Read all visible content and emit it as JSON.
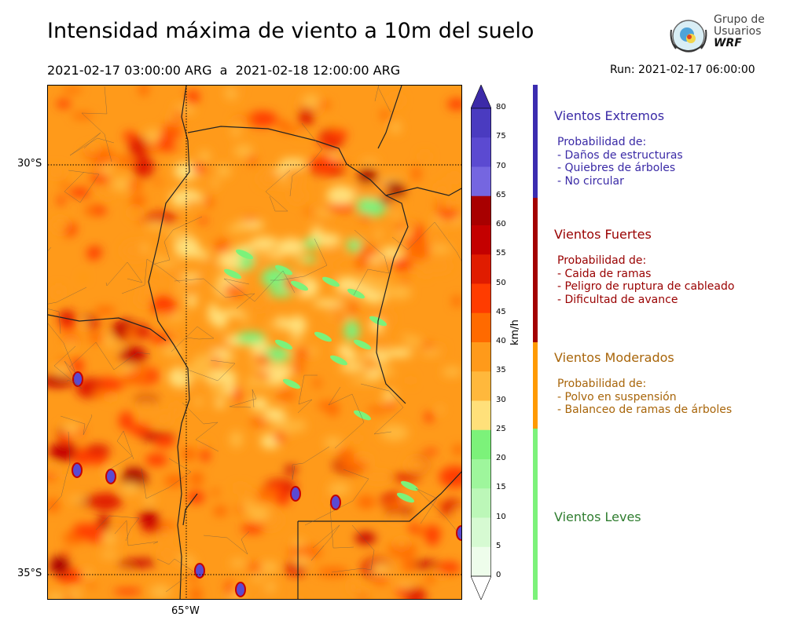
{
  "header": {
    "title": "Intensidad máxima de viento a 10m del suelo",
    "period": "2021-02-17 03:00:00 ARG  a  2021-02-18 12:00:00 ARG",
    "run": "Run: 2021-02-17 06:00:00"
  },
  "logo": {
    "line1": "Grupo de",
    "line2": "Usuarios",
    "line3": "WRF"
  },
  "map": {
    "lat_labels": [
      "30°S",
      "35°S"
    ],
    "lon_labels": [
      "65°W"
    ]
  },
  "colorbar": {
    "unit": "km/h",
    "ticks": [
      "80",
      "75",
      "70",
      "65",
      "60",
      "55",
      "50",
      "45",
      "40",
      "35",
      "30",
      "25",
      "20",
      "15",
      "10",
      "5",
      "0"
    ],
    "colors": [
      "#3c2aa8",
      "#4a3bc0",
      "#5b4ad1",
      "#7566e0",
      "#a80000",
      "#c40000",
      "#e01c00",
      "#ff3c00",
      "#ff6a00",
      "#ff9a1a",
      "#ffb83c",
      "#ffe07a",
      "#7cf27a",
      "#9ef69c",
      "#bcf7b8",
      "#d6fad2",
      "#eefdeb"
    ]
  },
  "categories": [
    {
      "title": "Vientos Extremos",
      "color": "#3a2aa6",
      "bar": "#3b2cb0",
      "desc": [
        "Probabilidad de:",
        "- Daños de estructuras",
        "- Quiebres de árboles",
        "- No circular"
      ]
    },
    {
      "title": "Vientos Fuertes",
      "color": "#990000",
      "bar": "#a30000",
      "desc": [
        "Probabilidad de:",
        "- Caida de ramas",
        "- Peligro de ruptura de cableado",
        "- Dificultad de avance"
      ]
    },
    {
      "title": "Vientos Moderados",
      "color": "#a8650a",
      "bar": "#ff9a00",
      "desc": [
        "Probabilidad de:",
        "- Polvo en suspensión",
        "- Balanceo de ramas de árboles"
      ]
    },
    {
      "title": "Vientos Leves",
      "color": "#2f7d2f",
      "bar": "#7cf27a",
      "desc": []
    }
  ]
}
